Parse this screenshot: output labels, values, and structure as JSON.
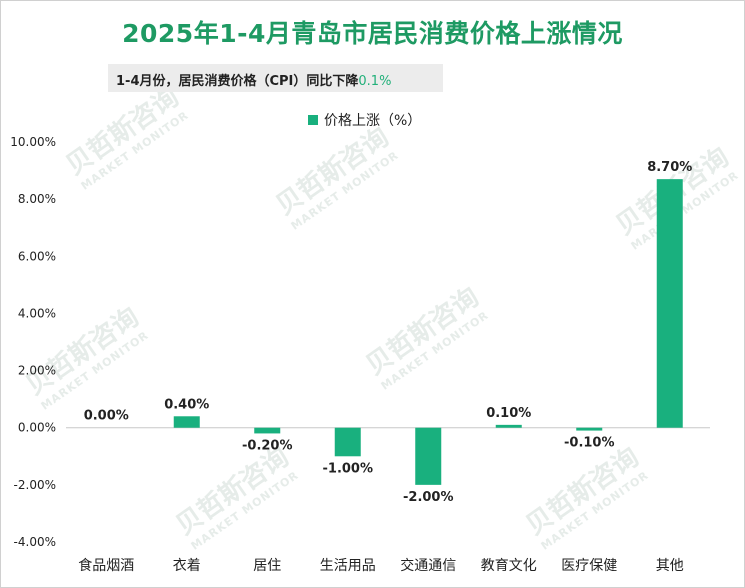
{
  "title": "2025年1-4月青岛市居民消费价格上涨情况",
  "subtitle": {
    "text": "1-4月份，居民消费价格（CPI）同比下降",
    "highlight": "0.1%"
  },
  "watermark": {
    "cn": "贝哲斯咨询",
    "en": "MARKET MONITOR"
  },
  "colors": {
    "bar": "#19b07e",
    "title": "#1e9a63",
    "highlight": "#22b07a"
  },
  "chart_data": {
    "type": "bar",
    "categories": [
      "食品烟酒",
      "衣着",
      "居住",
      "生活用品",
      "交通通信",
      "教育文化",
      "医疗保健",
      "其他"
    ],
    "series": [
      {
        "name": "价格上涨（%）",
        "values": [
          0.0,
          0.4,
          -0.2,
          -1.0,
          -2.0,
          0.1,
          -0.1,
          8.7
        ]
      }
    ],
    "value_labels": [
      "0.00%",
      "0.40%",
      "-0.20%",
      "-1.00%",
      "-2.00%",
      "0.10%",
      "-0.10%",
      "8.70%"
    ],
    "y_ticks": [
      "10.00%",
      "8.00%",
      "6.00%",
      "4.00%",
      "2.00%",
      "0.00%",
      "-2.00%",
      "-4.00%"
    ],
    "ylim": [
      -4,
      10
    ],
    "legend": "top-center",
    "grid": false
  }
}
